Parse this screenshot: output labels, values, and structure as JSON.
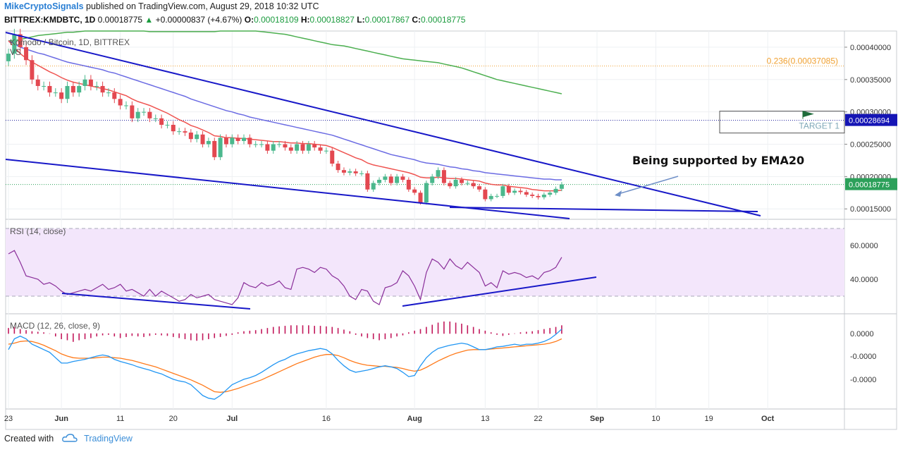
{
  "header": {
    "author": "MikeCryptoSignals",
    "published_text": "published on TradingView.com, August 29, 2018 10:32 UTC",
    "symbol_line": "BITTREX:KMDBTC, 1D",
    "last": "0.00018775",
    "change_arrow": "▲",
    "change": "+0.00000837 (+4.67%)",
    "o_label": "O:",
    "o_value": "0.00018109",
    "h_label": "H:",
    "h_value": "0.00018827",
    "l_label": "L:",
    "l_value": "0.00017867",
    "c_label": "C:",
    "c_value": "0.00018775"
  },
  "footer": {
    "created_with": "Created with",
    "brand": "TradingView"
  },
  "chart_data": [
    {
      "type": "candlestick",
      "title": "Komodo / Bitcoin, 1D, BITTREX",
      "subtitle": "VS",
      "ylim": [
        0.000135,
        0.000425
      ],
      "y_ticks": [
        "0.00040000",
        "0.00035000",
        "0.00030000",
        "0.00025000",
        "0.00020000",
        "0.00015000"
      ],
      "y_tick_values": [
        0.0004,
        0.00035,
        0.0003,
        0.00025,
        0.0002,
        0.00015
      ],
      "x_tick_labels": [
        "23",
        "Jun",
        "11",
        "20",
        "Jul",
        "16",
        "Aug",
        "13",
        "22",
        "Sep",
        "10",
        "19",
        "Oct"
      ],
      "x_tick_days": [
        0,
        9,
        19,
        28,
        38,
        54,
        69,
        81,
        90,
        100,
        110,
        119,
        129
      ],
      "start_date": "2018-05-23",
      "closes": [
        0.00039,
        0.00042,
        0.0004,
        0.00038,
        0.00035,
        0.00034,
        0.00034,
        0.00033,
        0.00033,
        0.00032,
        0.00034,
        0.00033,
        0.00034,
        0.00035,
        0.00034,
        0.00034,
        0.00033,
        0.00033,
        0.00032,
        0.00031,
        0.00031,
        0.00029,
        0.0003,
        0.0003,
        0.00029,
        0.00029,
        0.00028,
        0.00028,
        0.00027,
        0.00027,
        0.000268,
        0.000258,
        0.000265,
        0.00025,
        0.000255,
        0.00023,
        0.00026,
        0.00025,
        0.00026,
        0.000255,
        0.00026,
        0.00025,
        0.00025,
        0.00025,
        0.00024,
        0.00025,
        0.00025,
        0.000245,
        0.00024,
        0.00025,
        0.00024,
        0.00025,
        0.000245,
        0.00024,
        0.00024,
        0.00022,
        0.00021,
        0.000206,
        0.000208,
        0.000205,
        0.000205,
        0.00018,
        0.00019,
        0.000195,
        0.0002,
        0.00019,
        0.0002,
        0.000195,
        0.00018,
        0.000175,
        0.00016,
        0.00019,
        0.0002,
        0.00021,
        0.00019,
        0.000185,
        0.000195,
        0.00019,
        0.00019,
        0.000185,
        0.00018,
        0.000165,
        0.00017,
        0.00017,
        0.000185,
        0.000175,
        0.000178,
        0.000176,
        0.000172,
        0.00017,
        0.000168,
        0.000172,
        0.000175,
        0.000181,
        0.00018775
      ],
      "ema20": [
        0.00041,
        0.0004,
        0.00039,
        0.000383,
        0.000377,
        0.000372,
        0.000367,
        0.000362,
        0.000358,
        0.000353,
        0.000349,
        0.000346,
        0.000344,
        0.000342,
        0.00034,
        0.000338,
        0.000336,
        0.000334,
        0.000331,
        0.000328,
        0.000325,
        0.00032,
        0.000316,
        0.000313,
        0.00031,
        0.000306,
        0.000302,
        0.000298,
        0.000293,
        0.000288,
        0.000284,
        0.000279,
        0.000276,
        0.000272,
        0.000268,
        0.000263,
        0.000262,
        0.00026,
        0.00026,
        0.000259,
        0.000259,
        0.000258,
        0.000257,
        0.000256,
        0.000255,
        0.000254,
        0.000254,
        0.000253,
        0.000252,
        0.000252,
        0.000251,
        0.000251,
        0.00025,
        0.000249,
        0.000248,
        0.000245,
        0.000241,
        0.000237,
        0.000233,
        0.000229,
        0.000226,
        0.000221,
        0.000218,
        0.000216,
        0.000214,
        0.000212,
        0.00021,
        0.000208,
        0.000206,
        0.000203,
        0.000199,
        0.000198,
        0.000198,
        0.000199,
        0.000198,
        0.000197,
        0.000197,
        0.000196,
        0.000195,
        0.000194,
        0.000193,
        0.00019,
        0.000188,
        0.000187,
        0.000187,
        0.000185,
        0.000184,
        0.000183,
        0.000182,
        0.00018,
        0.000179,
        0.000178,
        0.000178,
        0.000178,
        0.000179
      ],
      "ema50": [
        0.00041,
        0.000405,
        0.0004,
        0.000397,
        0.000394,
        0.000391,
        0.000389,
        0.000386,
        0.000383,
        0.00038,
        0.000377,
        0.000375,
        0.000373,
        0.000371,
        0.000369,
        0.000367,
        0.000365,
        0.000362,
        0.00036,
        0.000357,
        0.000354,
        0.000351,
        0.000348,
        0.000345,
        0.000342,
        0.000339,
        0.000336,
        0.000333,
        0.00033,
        0.000327,
        0.000324,
        0.00032,
        0.000317,
        0.000314,
        0.000311,
        0.000308,
        0.000305,
        0.000302,
        0.0003,
        0.000297,
        0.000295,
        0.000292,
        0.00029,
        0.000288,
        0.000286,
        0.000284,
        0.000282,
        0.00028,
        0.000278,
        0.000276,
        0.000274,
        0.000272,
        0.00027,
        0.000268,
        0.000266,
        0.000264,
        0.000261,
        0.000258,
        0.000255,
        0.000252,
        0.000249,
        0.000246,
        0.000243,
        0.00024,
        0.000237,
        0.000234,
        0.000232,
        0.00023,
        0.000228,
        0.000226,
        0.000223,
        0.000221,
        0.00022,
        0.000219,
        0.000217,
        0.000215,
        0.000214,
        0.000212,
        0.000211,
        0.000209,
        0.000208,
        0.000206,
        0.000205,
        0.000204,
        0.000203,
        0.000202,
        0.000201,
        0.0002,
        0.000199,
        0.000198,
        0.000197,
        0.000196,
        0.000196,
        0.000195,
        0.000195
      ],
      "ma200": [
        0.00041,
        0.00041,
        0.000412,
        0.000414,
        0.000416,
        0.000418,
        0.000419,
        0.00042,
        0.000421,
        0.000422,
        0.000423,
        0.000423,
        0.000424,
        0.000425,
        0.000425,
        0.000425,
        0.000425,
        0.000425,
        0.000425,
        0.000425,
        0.000425,
        0.000425,
        0.000425,
        0.000425,
        0.000424,
        0.000424,
        0.000424,
        0.000424,
        0.000424,
        0.000424,
        0.000424,
        0.000424,
        0.000424,
        0.000424,
        0.000424,
        0.000424,
        0.000425,
        0.000425,
        0.000425,
        0.000425,
        0.000425,
        0.000425,
        0.000425,
        0.000424,
        0.000423,
        0.000422,
        0.000421,
        0.00042,
        0.000418,
        0.000416,
        0.000414,
        0.000412,
        0.00041,
        0.000408,
        0.000406,
        0.000404,
        0.000403,
        0.000402,
        0.0004,
        0.000398,
        0.000396,
        0.000394,
        0.000392,
        0.00039,
        0.000388,
        0.000386,
        0.000384,
        0.000382,
        0.000381,
        0.00038,
        0.000379,
        0.000378,
        0.000377,
        0.000376,
        0.000374,
        0.000372,
        0.00037,
        0.000368,
        0.000365,
        0.000362,
        0.000359,
        0.000356,
        0.000353,
        0.00035,
        0.000348,
        0.000346,
        0.000344,
        0.000342,
        0.00034,
        0.000338,
        0.000336,
        0.000334,
        0.000332,
        0.00033,
        0.000328
      ],
      "levels": {
        "fib_label": "0.236(0.00037085)",
        "fib_value": 0.00037085,
        "target_label": "TARGET 1",
        "target_value": 0.00028694,
        "target_tag": "0.00028694",
        "last_tag": "0.00018775",
        "last_value": 0.00018775
      },
      "annotation": "Being supported by EMA20",
      "colors": {
        "up": "#4bb88d",
        "down": "#e34850",
        "ema20": "#ef5350",
        "ema50": "#6b6be3",
        "ma200": "#4caf50",
        "trend": "#1818c8",
        "fib": "#f0a030"
      }
    },
    {
      "type": "line",
      "title": "RSI (14, close)",
      "ylim": [
        20,
        75
      ],
      "y_ticks": [
        "60.0000",
        "40.0000"
      ],
      "y_tick_values": [
        60,
        40
      ],
      "band": [
        30,
        70
      ],
      "values": [
        55,
        57,
        50,
        42,
        41,
        40,
        37,
        38,
        36,
        33,
        31,
        32,
        33,
        34,
        33,
        35,
        37,
        34,
        35,
        37,
        33,
        34,
        32,
        30,
        34,
        30,
        33,
        31,
        29,
        27,
        28,
        31,
        29,
        30,
        31,
        28,
        27,
        26,
        25,
        29,
        38,
        36,
        35,
        38,
        36,
        37,
        39,
        35,
        34,
        46,
        47,
        46,
        44,
        47,
        46,
        42,
        40,
        36,
        30,
        28,
        34,
        33,
        27,
        25,
        35,
        36,
        38,
        45,
        42,
        36,
        28,
        44,
        52,
        50,
        46,
        52,
        48,
        46,
        50,
        47,
        44,
        36,
        38,
        35,
        45,
        43,
        44,
        43,
        41,
        42,
        40,
        44,
        45,
        47,
        53
      ],
      "trendlines": "4",
      "color": "#8a2f9a"
    },
    {
      "type": "histogram+line",
      "title": "MACD (12, 26, close, 9)",
      "y_ticks": [
        "0.0000",
        "-0.0000",
        "-0.0000"
      ],
      "ylim": [
        -1.4,
        0.35
      ],
      "hist": [
        0.1,
        0.12,
        0.08,
        0.06,
        0.04,
        0.03,
        0.02,
        0,
        -0.05,
        -0.1,
        -0.12,
        -0.15,
        -0.12,
        -0.1,
        -0.08,
        -0.05,
        -0.03,
        -0.02,
        -0.05,
        -0.08,
        -0.06,
        -0.04,
        -0.05,
        -0.06,
        -0.04,
        -0.02,
        -0.03,
        -0.04,
        -0.06,
        -0.08,
        -0.1,
        -0.12,
        -0.13,
        -0.12,
        -0.1,
        -0.08,
        -0.06,
        -0.04,
        -0.02,
        0.02,
        0.04,
        0.05,
        0.06,
        0.08,
        0.1,
        0.12,
        0.13,
        0.14,
        0.15,
        0.15,
        0.15,
        0.15,
        0.14,
        0.14,
        0.13,
        0.12,
        0.1,
        0.07,
        0.04,
        -0.02,
        -0.05,
        -0.08,
        -0.1,
        -0.12,
        -0.1,
        -0.08,
        -0.05,
        -0.03,
        0.02,
        0.05,
        0.08,
        0.12,
        0.16,
        0.2,
        0.22,
        0.22,
        0.2,
        0.18,
        0.15,
        0.12,
        0.08,
        0.05,
        0.02,
        -0.02,
        -0.04,
        -0.02,
        0.0,
        0.02,
        0.03,
        0.04,
        0.06,
        0.08,
        0.1,
        0.12,
        0.15
      ],
      "macd": [
        -0.3,
        -0.1,
        -0.05,
        -0.1,
        -0.2,
        -0.25,
        -0.3,
        -0.35,
        -0.45,
        -0.55,
        -0.55,
        -0.52,
        -0.5,
        -0.48,
        -0.45,
        -0.42,
        -0.4,
        -0.42,
        -0.48,
        -0.52,
        -0.55,
        -0.58,
        -0.62,
        -0.65,
        -0.68,
        -0.72,
        -0.75,
        -0.8,
        -0.85,
        -0.88,
        -0.9,
        -0.95,
        -1.05,
        -1.15,
        -1.2,
        -1.22,
        -1.15,
        -1.05,
        -0.95,
        -0.9,
        -0.85,
        -0.82,
        -0.78,
        -0.72,
        -0.65,
        -0.58,
        -0.52,
        -0.48,
        -0.42,
        -0.38,
        -0.35,
        -0.32,
        -0.3,
        -0.28,
        -0.3,
        -0.38,
        -0.5,
        -0.6,
        -0.68,
        -0.72,
        -0.7,
        -0.68,
        -0.65,
        -0.62,
        -0.6,
        -0.62,
        -0.65,
        -0.72,
        -0.8,
        -0.78,
        -0.6,
        -0.45,
        -0.35,
        -0.28,
        -0.25,
        -0.22,
        -0.2,
        -0.18,
        -0.2,
        -0.25,
        -0.3,
        -0.3,
        -0.28,
        -0.25,
        -0.24,
        -0.22,
        -0.2,
        -0.22,
        -0.2,
        -0.2,
        -0.18,
        -0.15,
        -0.1,
        -0.02,
        0.08
      ],
      "signal": [
        -0.2,
        -0.18,
        -0.15,
        -0.14,
        -0.15,
        -0.18,
        -0.22,
        -0.27,
        -0.32,
        -0.38,
        -0.42,
        -0.45,
        -0.46,
        -0.46,
        -0.46,
        -0.45,
        -0.44,
        -0.44,
        -0.45,
        -0.46,
        -0.48,
        -0.5,
        -0.53,
        -0.56,
        -0.59,
        -0.62,
        -0.66,
        -0.7,
        -0.74,
        -0.78,
        -0.82,
        -0.86,
        -0.91,
        -0.96,
        -1.02,
        -1.08,
        -1.09,
        -1.08,
        -1.05,
        -1.02,
        -0.98,
        -0.94,
        -0.9,
        -0.86,
        -0.81,
        -0.76,
        -0.71,
        -0.66,
        -0.61,
        -0.56,
        -0.52,
        -0.48,
        -0.44,
        -0.41,
        -0.39,
        -0.39,
        -0.41,
        -0.45,
        -0.5,
        -0.54,
        -0.57,
        -0.59,
        -0.6,
        -0.61,
        -0.61,
        -0.62,
        -0.63,
        -0.65,
        -0.68,
        -0.7,
        -0.68,
        -0.63,
        -0.57,
        -0.51,
        -0.46,
        -0.41,
        -0.37,
        -0.34,
        -0.31,
        -0.3,
        -0.3,
        -0.3,
        -0.29,
        -0.28,
        -0.27,
        -0.26,
        -0.25,
        -0.24,
        -0.23,
        -0.22,
        -0.21,
        -0.2,
        -0.18,
        -0.15,
        -0.1
      ],
      "colors": {
        "macd": "#2196f3",
        "signal": "#ff7a1a",
        "hist": "#c2185b"
      }
    }
  ]
}
